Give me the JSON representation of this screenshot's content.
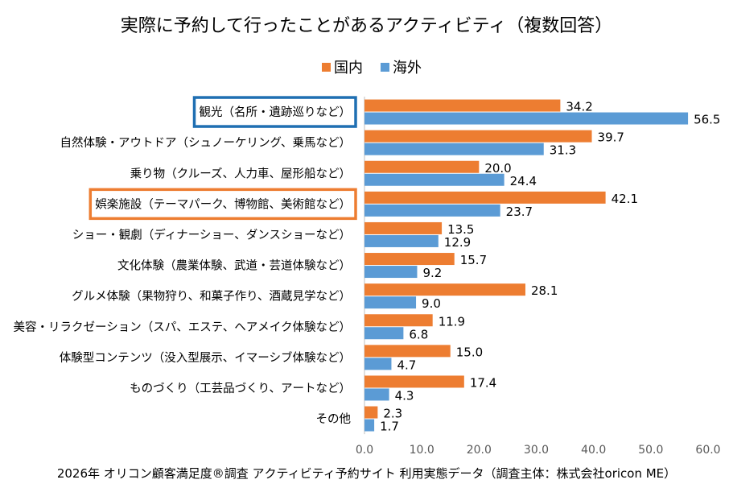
{
  "chart_data": {
    "type": "bar",
    "orientation": "horizontal",
    "title": "実際に予約して行ったことがあるアクティビティ（複数回答）",
    "categories": [
      "観光（名所・遺跡巡りなど）",
      "自然体験・アウトドア（シュノーケリング、乗馬など）",
      "乗り物（クルーズ、人力車、屋形船など）",
      "娯楽施設（テーマパーク、博物館、美術館など）",
      "ショー・観劇（ディナーショー、ダンスショーなど）",
      "文化体験（農業体験、武道・芸道体験など）",
      "グルメ体験（果物狩り、和菓子作り、酒蔵見学など）",
      "美容・リラクゼーション（スパ、エステ、ヘアメイク体験など）",
      "体験型コンテンツ（没入型展示、イマーシブ体験など）",
      "ものづくり（工芸品づくり、アートなど）",
      "その他"
    ],
    "series": [
      {
        "name": "国内",
        "color": "#ed7d31",
        "values": [
          34.2,
          39.7,
          20.0,
          42.1,
          13.5,
          15.7,
          28.1,
          11.9,
          15.0,
          17.4,
          2.3
        ],
        "labels": [
          "34.2",
          "39.7",
          "20.0",
          "42.1",
          "13.5",
          "15.7",
          "28.1",
          "11.9",
          "15.0",
          "17.4",
          "2.3"
        ]
      },
      {
        "name": "海外",
        "color": "#5b9bd5",
        "values": [
          56.5,
          31.3,
          24.4,
          23.7,
          12.9,
          9.2,
          9.0,
          6.8,
          4.7,
          4.3,
          1.7
        ],
        "labels": [
          "56.5",
          "31.3",
          "24.4",
          "23.7",
          "12.9",
          "9.2",
          "9.0",
          "6.8",
          "4.7",
          "4.3",
          "1.7"
        ]
      }
    ],
    "xlim": [
      0,
      60
    ],
    "xticks": [
      "0.0",
      "10.0",
      "20.0",
      "30.0",
      "40.0",
      "50.0",
      "60.0"
    ],
    "grid": false,
    "legend_position": "top",
    "highlighted": [
      {
        "index": 0,
        "color": "#1f6fb2"
      },
      {
        "index": 3,
        "color": "#ed7d31"
      }
    ],
    "footnote": "2026年 オリコン顧客満足度®調査 アクティビティ予約サイト 利用実態データ（調査主体：株式会社oricon ME）"
  }
}
